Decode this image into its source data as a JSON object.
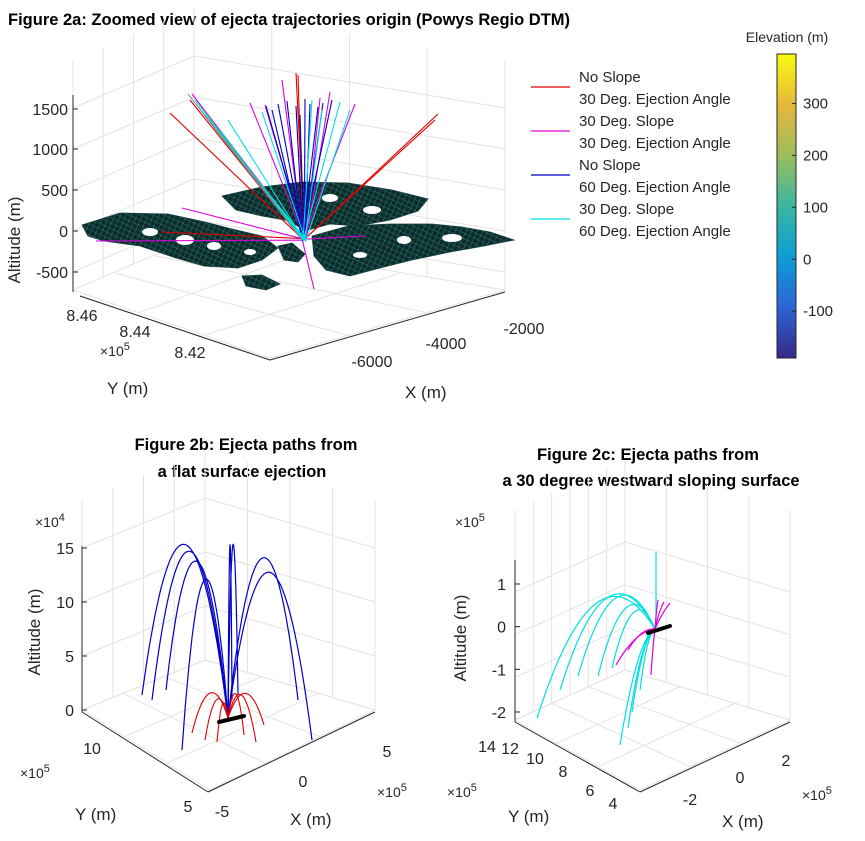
{
  "figure": {
    "title_2a": "Figure 2a: Zoomed view of ejecta trajectories origin (Powys Regio DTM)",
    "title_2b": [
      "Figure 2b: Ejecta paths from",
      "a flat surface ejection"
    ],
    "title_2c": [
      "Figure 2c: Ejecta paths from",
      "a 30 degree westward sloping surface"
    ]
  },
  "chart_data": [
    {
      "id": "fig2a",
      "type": "3d-surface-line",
      "title": "Figure 2a: Zoomed view of ejecta trajectories origin (Powys Regio DTM)",
      "xlabel": "X (m)",
      "ylabel": "Y (m)",
      "zlabel": "Altitude (m)",
      "x_ticks": [
        "-6000",
        "-4000",
        "-2000"
      ],
      "y_ticks": [
        "8.42",
        "8.44",
        "8.46"
      ],
      "y_exponent": "5",
      "z_ticks": [
        "-500",
        "0",
        "500",
        "1000",
        "1500"
      ],
      "zlim": [
        -700,
        1800
      ],
      "grid": true,
      "legend_position": "top-right",
      "series": [
        {
          "name": "No Slope 30 Deg. Ejection Angle",
          "legend_lines": [
            "No Slope",
            "30 Deg. Ejection Angle"
          ],
          "color": "#e00000"
        },
        {
          "name": "30 Deg. Slope 30 Deg. Ejection Angle",
          "legend_lines": [
            "30 Deg. Slope",
            "30 Deg. Ejection Angle"
          ],
          "color": "#e000e0"
        },
        {
          "name": "No Slope 60 Deg. Ejection Angle",
          "legend_lines": [
            "No Slope",
            "60 Deg. Ejection Angle"
          ],
          "color": "#0000c8"
        },
        {
          "name": "30 Deg. Slope 60 Deg. Ejection Angle",
          "legend_lines": [
            "30 Deg. Slope",
            "60 Deg. Ejection Angle"
          ],
          "color": "#00e0e0"
        }
      ],
      "colorbar": {
        "label": "Elevation (m)",
        "ticks": [
          "300",
          "200",
          "100",
          "0",
          "-100"
        ],
        "range": [
          -190,
          395
        ],
        "colormap": [
          "#352a87",
          "#2c64d6",
          "#0d9ed7",
          "#3ab6a0",
          "#9cbd5c",
          "#e6b73c",
          "#f9fb0e"
        ]
      }
    },
    {
      "id": "fig2b",
      "type": "3d-line",
      "title": "Figure 2b: Ejecta paths from a flat surface ejection",
      "xlabel": "X (m)",
      "ylabel": "Y (m)",
      "zlabel": "Altitude (m)",
      "x_ticks": [
        "-5",
        "0",
        "5"
      ],
      "x_exponent": "5",
      "y_ticks": [
        "5",
        "10"
      ],
      "y_exponent": "5",
      "z_ticks": [
        "0",
        "5",
        "10",
        "15"
      ],
      "z_exponent": "4",
      "zlim": [
        0,
        150000
      ],
      "grid": true,
      "series": [
        {
          "name": "No Slope 60 Deg. Ejection Angle",
          "color": "#0000c8",
          "peak_altitudes": [
            150000,
            146000,
            143000,
            132000,
            152000,
            150000,
            145000,
            140000
          ]
        },
        {
          "name": "No Slope 30 Deg. Ejection Angle",
          "color": "#e00000",
          "peak_altitudes": [
            30000,
            27000,
            24000,
            32000,
            30000,
            26000
          ]
        }
      ]
    },
    {
      "id": "fig2c",
      "type": "3d-line",
      "title": "Figure 2c: Ejecta paths from a 30 degree westward sloping surface",
      "xlabel": "X (m)",
      "ylabel": "Y (m)",
      "zlabel": "Altitude (m)",
      "x_ticks": [
        "-2",
        "0",
        "2"
      ],
      "x_exponent": "5",
      "y_ticks": [
        "4",
        "6",
        "8",
        "10",
        "12",
        "14"
      ],
      "y_exponent": "5",
      "z_ticks": [
        "-2",
        "-1",
        "0",
        "1"
      ],
      "z_exponent": "5",
      "zlim": [
        -230000,
        170000
      ],
      "grid": true,
      "series": [
        {
          "name": "30 Deg. Slope 60 Deg. Ejection Angle",
          "color": "#00e0e0"
        },
        {
          "name": "30 Deg. Slope 30 Deg. Ejection Angle",
          "color": "#e000e0"
        }
      ]
    }
  ]
}
